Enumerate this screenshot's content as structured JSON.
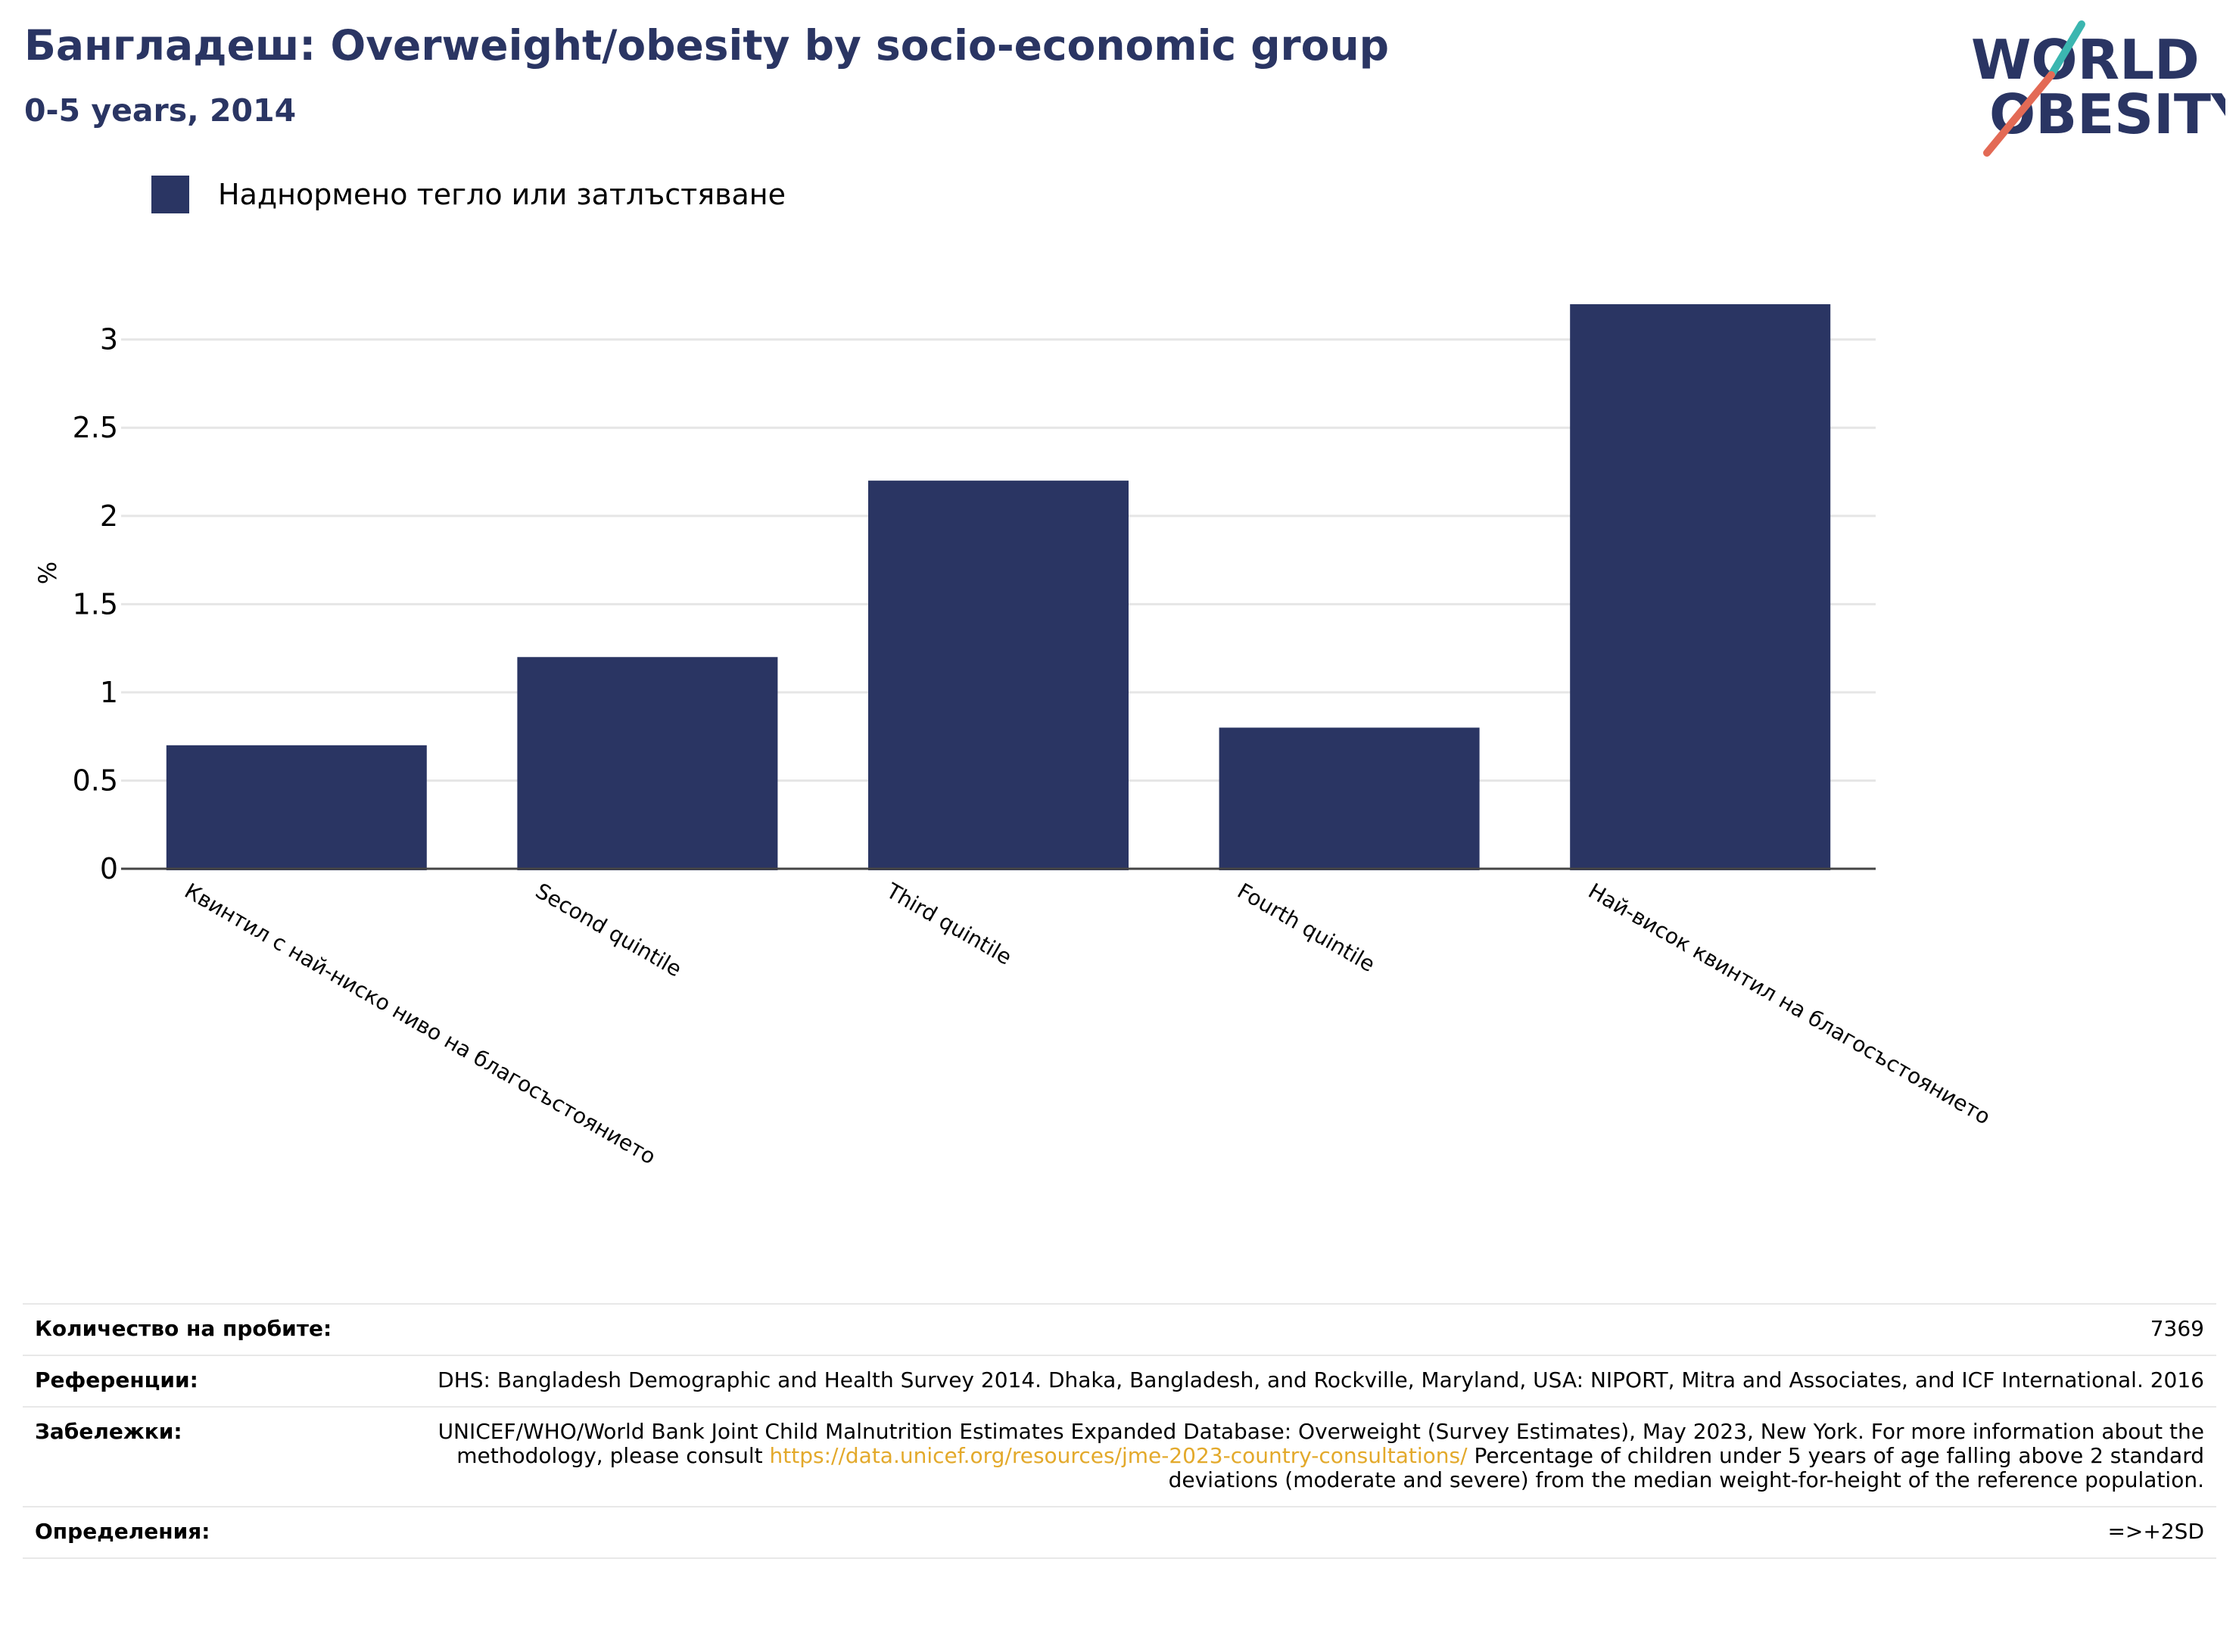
{
  "header": {
    "title": "Бангладеш: Overweight/obesity by socio-economic group",
    "subtitle": "0-5 years, 2014",
    "logo_line1": "WORLD",
    "logo_line2": "OBESITY"
  },
  "legend": {
    "label": "Наднормено тегло или затлъстяване",
    "color": "#2a3563"
  },
  "chart_data": {
    "type": "bar",
    "categories": [
      "Квинтил с най-ниско ниво на благосъстоянието",
      "Second quintile",
      "Third quintile",
      "Fourth quintile",
      "Най-висок квинтил на благосъстоянието"
    ],
    "series": [
      {
        "name": "Наднормено тегло или затлъстяване",
        "values": [
          0.7,
          1.2,
          2.2,
          0.8,
          3.2
        ]
      }
    ],
    "ylabel": "%",
    "xlabel": "",
    "ylim": [
      0,
      3.2
    ],
    "yticks": [
      0,
      0.5,
      1,
      1.5,
      2,
      2.5,
      3
    ],
    "ytick_labels": [
      "0",
      "0.5",
      "1",
      "1.5",
      "2",
      "2.5",
      "3"
    ],
    "grid": true,
    "legend_position": "top-left",
    "bar_color": "#2a3563"
  },
  "meta": {
    "rows": [
      {
        "key": "Количество на пробите:",
        "value": "7369"
      },
      {
        "key": "Референции:",
        "value": "DHS: Bangladesh Demographic and Health Survey 2014. Dhaka, Bangladesh, and Rockville, Maryland, USA: NIPORT, Mitra and Associates, and ICF International. 2016"
      },
      {
        "key": "Забележки:",
        "value_before": "UNICEF/WHO/World Bank Joint Child Malnutrition Estimates Expanded Database: Overweight (Survey Estimates), May 2023, New York. For more information about the methodology, please consult",
        "link": "https://data.unicef.org/resources/jme-2023-country-consultations/",
        "value_after": "Percentage of children under 5 years of age falling above 2 standard deviations (moderate and severe) from the median weight-for-height of the reference population."
      },
      {
        "key": "Определения:",
        "value": "=>+2SD"
      }
    ]
  }
}
